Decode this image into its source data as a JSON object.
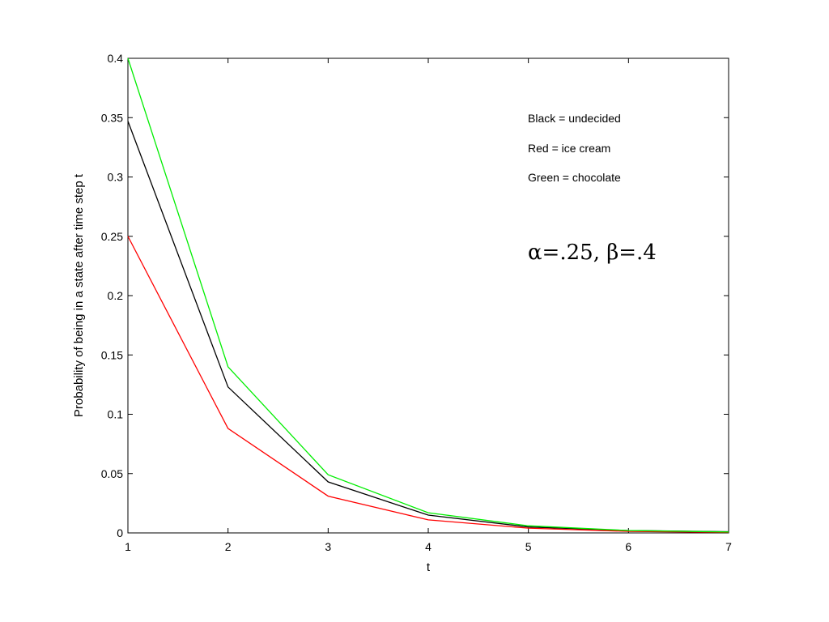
{
  "chart_data": {
    "type": "line",
    "title": "",
    "xlabel": "t",
    "ylabel": "Probability of being in a state after time step t",
    "xlim": [
      1,
      7
    ],
    "ylim": [
      0,
      0.4
    ],
    "x_ticks": [
      "1",
      "2",
      "3",
      "4",
      "5",
      "6",
      "7"
    ],
    "y_ticks": [
      "0",
      "0.05",
      "0.1",
      "0.15",
      "0.2",
      "0.25",
      "0.3",
      "0.35",
      "0.4"
    ],
    "grid": false,
    "x": [
      1,
      2,
      3,
      4,
      5,
      6,
      7
    ],
    "series": [
      {
        "color": "#000000",
        "values": [
          0.347,
          0.123,
          0.043,
          0.015,
          0.005,
          0.002,
          0.001
        ]
      },
      {
        "color": "#ff0000",
        "values": [
          0.25,
          0.088,
          0.031,
          0.011,
          0.004,
          0.0013,
          0.0005
        ]
      },
      {
        "color": "#00ee00",
        "values": [
          0.4,
          0.14,
          0.049,
          0.017,
          0.006,
          0.002,
          0.0008
        ]
      }
    ],
    "annotations": [
      "Black = undecided",
      "Red = ice cream",
      "Green = chocolate"
    ],
    "params_text": "α=.25, β=.4"
  }
}
